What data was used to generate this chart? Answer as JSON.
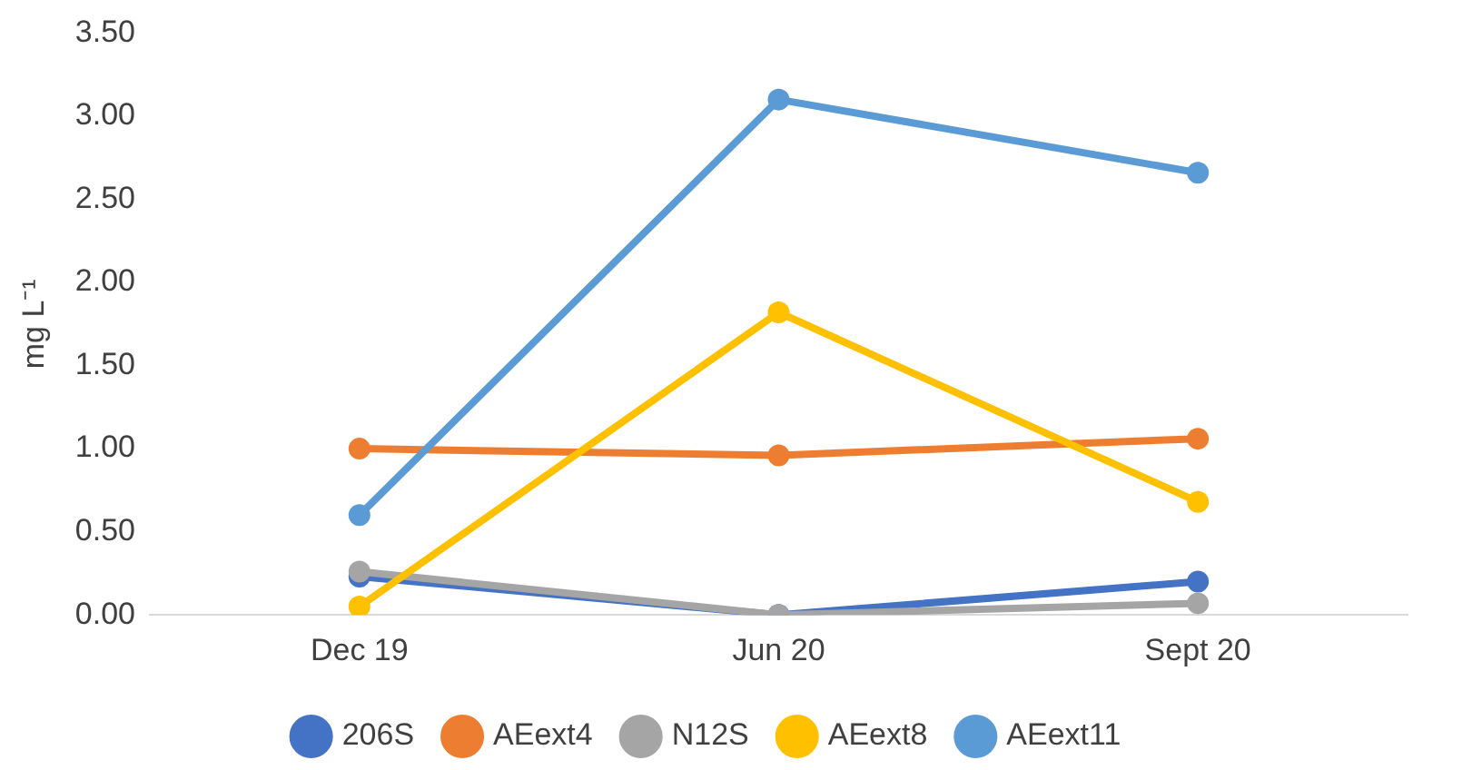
{
  "chart_data": {
    "type": "line",
    "ylabel": "mg L⁻¹",
    "categories": [
      "Dec 19",
      "Jun 20",
      "Sept 20"
    ],
    "series": [
      {
        "name": "206S",
        "color": "#4472c4",
        "values": [
          0.23,
          0.0,
          0.2
        ]
      },
      {
        "name": "AEext4",
        "color": "#ed7d31",
        "values": [
          1.0,
          0.96,
          1.06
        ]
      },
      {
        "name": "N12S",
        "color": "#a5a5a5",
        "values": [
          0.26,
          0.0,
          0.07
        ]
      },
      {
        "name": "AEext8",
        "color": "#ffc000",
        "values": [
          0.05,
          1.82,
          0.68
        ]
      },
      {
        "name": "AEext11",
        "color": "#5b9bd5",
        "values": [
          0.6,
          3.1,
          2.66
        ]
      }
    ],
    "ylim": [
      0,
      3.5
    ],
    "yticks": [
      {
        "value": 0,
        "label": "0.00"
      },
      {
        "value": 0.5,
        "label": "0.50"
      },
      {
        "value": 1,
        "label": "1.00"
      },
      {
        "value": 1.5,
        "label": "1.50"
      },
      {
        "value": 2,
        "label": "2.00"
      },
      {
        "value": 2.5,
        "label": "2.50"
      },
      {
        "value": 3,
        "label": "3.00"
      },
      {
        "value": 3.5,
        "label": "3.50"
      }
    ],
    "grid": false,
    "legend": "bottom",
    "marker": "circle",
    "line_style": "solid"
  }
}
